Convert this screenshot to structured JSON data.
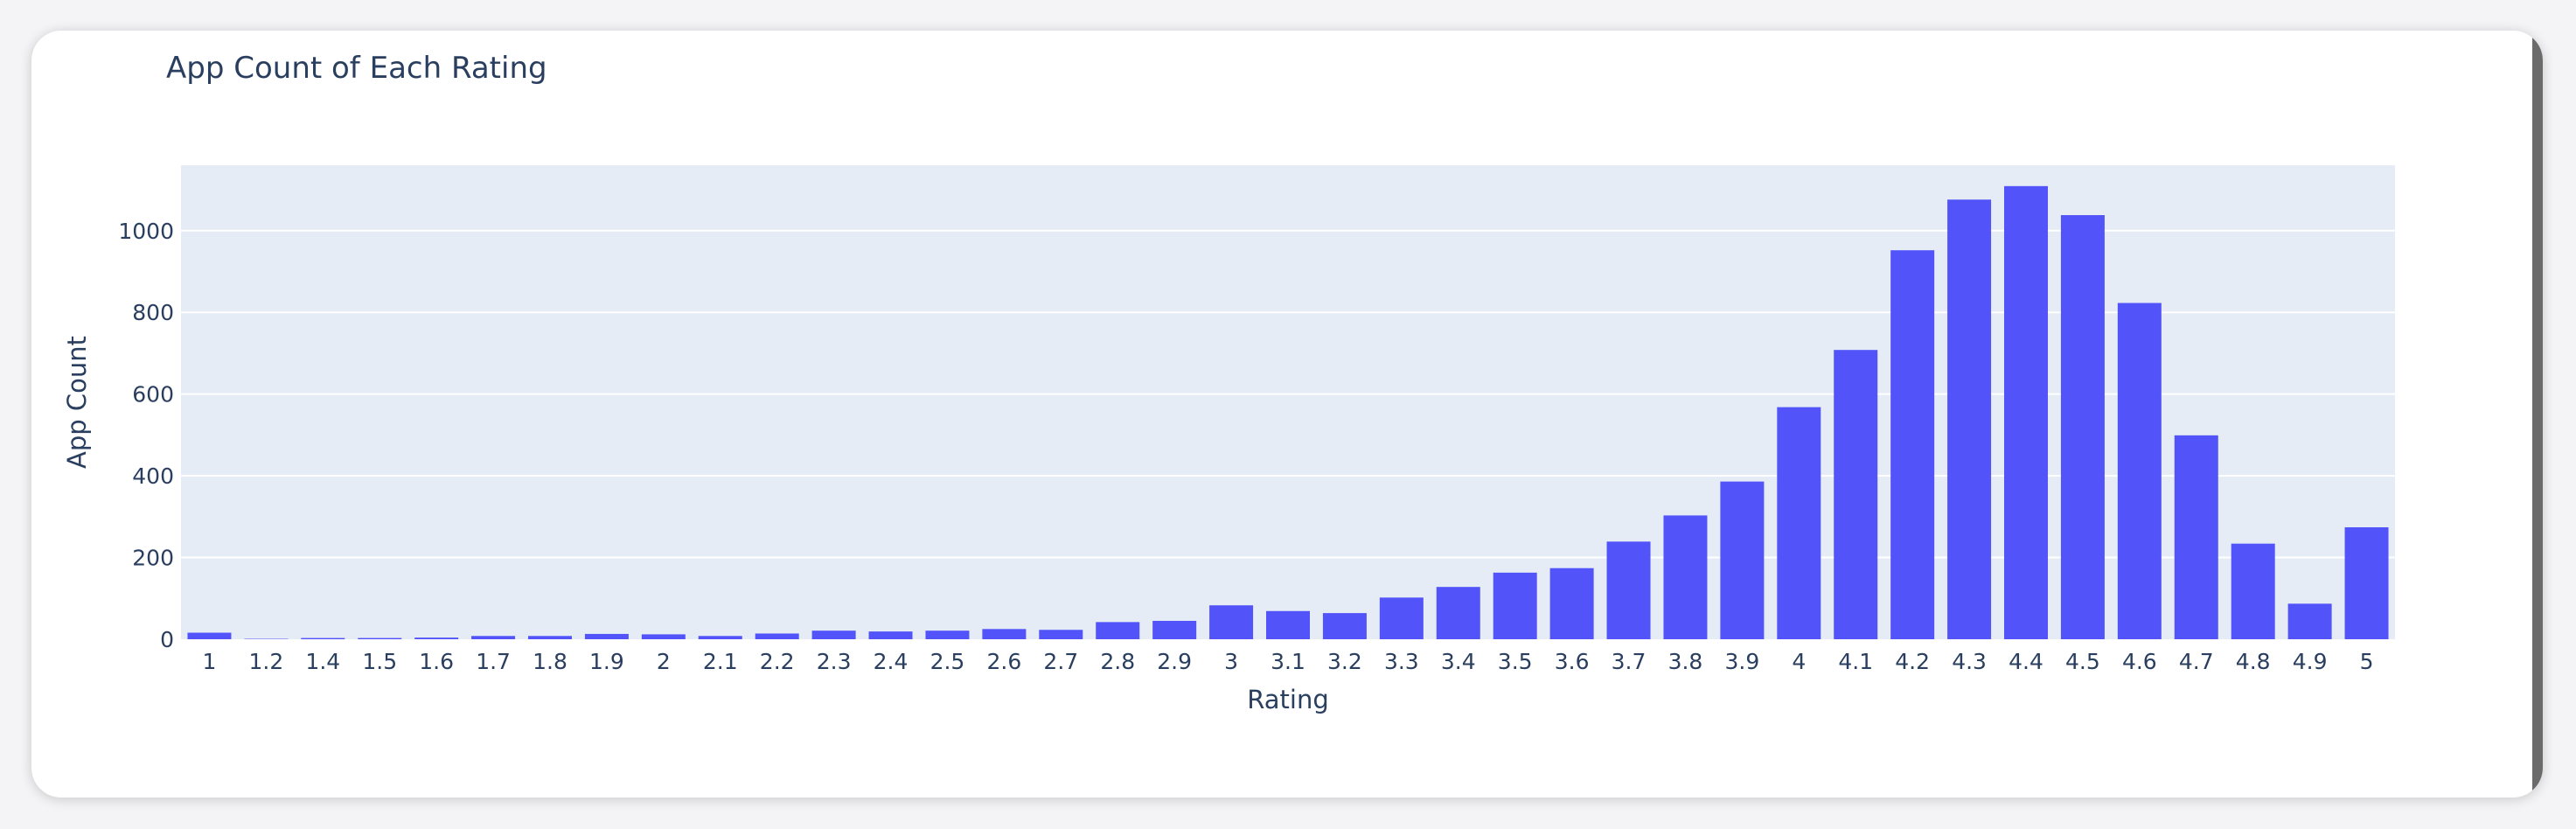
{
  "chart_data": {
    "type": "bar",
    "title": "App Count of Each Rating",
    "xlabel": "Rating",
    "ylabel": "App Count",
    "ylim": [
      0,
      1160
    ],
    "yticks": [
      "0",
      "200",
      "400",
      "600",
      "800",
      "1000"
    ],
    "grid": true,
    "categories": [
      "1",
      "1.2",
      "1.4",
      "1.5",
      "1.6",
      "1.7",
      "1.8",
      "1.9",
      "2",
      "2.1",
      "2.2",
      "2.3",
      "2.4",
      "2.5",
      "2.6",
      "2.7",
      "2.8",
      "2.9",
      "3",
      "3.1",
      "3.2",
      "3.3",
      "3.4",
      "3.5",
      "3.6",
      "3.7",
      "3.8",
      "3.9",
      "4",
      "4.1",
      "4.2",
      "4.3",
      "4.4",
      "4.5",
      "4.6",
      "4.7",
      "4.8",
      "4.9",
      "5"
    ],
    "values": [
      16,
      1,
      3,
      3,
      4,
      8,
      8,
      13,
      12,
      8,
      14,
      21,
      19,
      21,
      25,
      23,
      42,
      45,
      83,
      69,
      64,
      102,
      128,
      163,
      174,
      239,
      303,
      386,
      568,
      708,
      952,
      1076,
      1109,
      1038,
      823,
      499,
      234,
      87,
      274
    ],
    "colors": {
      "bar": "#5254f9",
      "plot_bg": "#e5ecf6",
      "grid": "#ffffff",
      "text": "#2a3f5f"
    }
  }
}
